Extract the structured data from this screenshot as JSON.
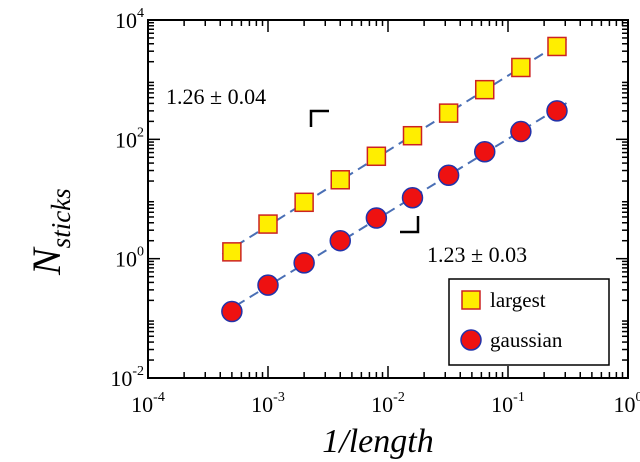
{
  "chart_data": {
    "type": "scatter",
    "xlabel": "1/length",
    "ylabel": {
      "base": "N",
      "subscript": "sticks"
    },
    "xscale": "log",
    "yscale": "log",
    "xlim": [
      0.0001,
      1
    ],
    "ylim": [
      0.01,
      10000
    ],
    "x_ticks": [
      {
        "base": "10",
        "exp": "-4"
      },
      {
        "base": "10",
        "exp": "-3"
      },
      {
        "base": "10",
        "exp": "-2"
      },
      {
        "base": "10",
        "exp": "-1"
      },
      {
        "base": "10",
        "exp": "0"
      }
    ],
    "y_ticks": [
      {
        "base": "10",
        "exp": "-2"
      },
      {
        "base": "10",
        "exp": "0"
      },
      {
        "base": "10",
        "exp": "2"
      },
      {
        "base": "10",
        "exp": "4"
      }
    ],
    "x_tick_values": [
      0.0001,
      0.001,
      0.01,
      0.1,
      1
    ],
    "y_tick_values": [
      0.01,
      1,
      100,
      10000
    ],
    "series": [
      {
        "name": "largest",
        "marker": "square",
        "fill": "#ffee00",
        "edge": "#cc2222",
        "x": [
          0.0005,
          0.001,
          0.002,
          0.004,
          0.008,
          0.016,
          0.032,
          0.064,
          0.128,
          0.256
        ],
        "y": [
          1.3,
          3.8,
          8.8,
          21,
          52,
          115,
          275,
          680,
          1600,
          3600
        ]
      },
      {
        "name": "gaussian",
        "marker": "circle",
        "fill": "#ee1111",
        "edge": "#2233aa",
        "x": [
          0.0005,
          0.001,
          0.002,
          0.004,
          0.008,
          0.016,
          0.032,
          0.064,
          0.128,
          0.256
        ],
        "y": [
          0.13,
          0.36,
          0.85,
          2.0,
          4.8,
          10.5,
          25,
          62,
          135,
          300
        ]
      }
    ],
    "fit_color": "#4a6fb5",
    "annotations": [
      {
        "text": "1.26 ± 0.04",
        "for": "largest"
      },
      {
        "text": "1.23 ± 0.03",
        "for": "gaussian"
      }
    ],
    "legend_placement": "bottom-right",
    "grid": false
  }
}
